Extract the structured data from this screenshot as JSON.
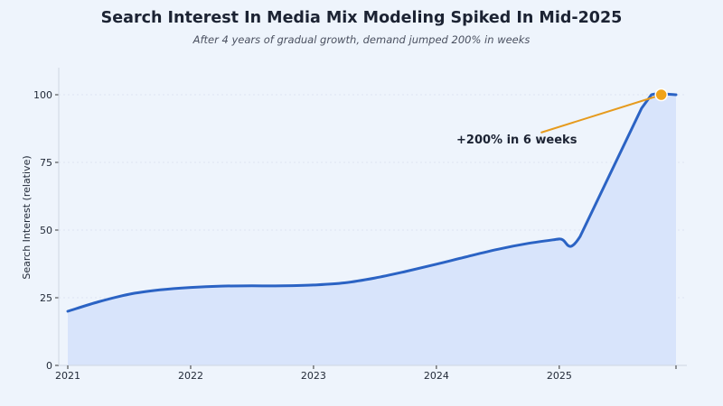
{
  "chart_data": {
    "type": "area",
    "title": "Search Interest In Media Mix Modeling Spiked In Mid-2025",
    "subtitle": "After 4 years of gradual growth, demand jumped 200% in weeks",
    "xlabel": "",
    "ylabel": "Search Interest (relative)",
    "xlim": [
      2021.0,
      2025.95
    ],
    "ylim": [
      0,
      110
    ],
    "x_ticks": [
      2021,
      2022,
      2023,
      2024,
      2025
    ],
    "x_tick_labels": [
      "2021",
      "2022",
      "2023",
      "2024",
      "2025"
    ],
    "y_ticks": [
      0,
      25,
      50,
      75,
      100
    ],
    "y_tick_labels": [
      "0",
      "25",
      "50",
      "75",
      "100"
    ],
    "grid": "horizontal, light dotted",
    "series": [
      {
        "x": [
          2021.0,
          2021.25,
          2021.5,
          2021.75,
          2022.0,
          2022.25,
          2022.5,
          2022.75,
          2023.0,
          2023.25,
          2023.5,
          2023.75,
          2024.0,
          2024.25,
          2024.5,
          2024.75,
          2025.0,
          2025.17,
          2025.67,
          2025.75,
          2025.95
        ],
        "y": [
          20,
          23.5,
          26.3,
          27.9,
          28.8,
          29.3,
          29.4,
          29.4,
          29.7,
          30.5,
          32.3,
          34.7,
          37.4,
          40.2,
          42.9,
          45.1,
          46.7,
          47.7,
          95,
          100,
          100
        ],
        "color": "#2b63c4",
        "fill_color": "#d6e3fb"
      }
    ],
    "annotation": {
      "text": "+200% in 6 weeks",
      "point_x": 2025.83,
      "point_y": 100,
      "text_anchor_x": 2024.85,
      "text_anchor_y": 86,
      "arrow_color": "#e69b1e",
      "marker_color": "#f0a31a"
    }
  }
}
